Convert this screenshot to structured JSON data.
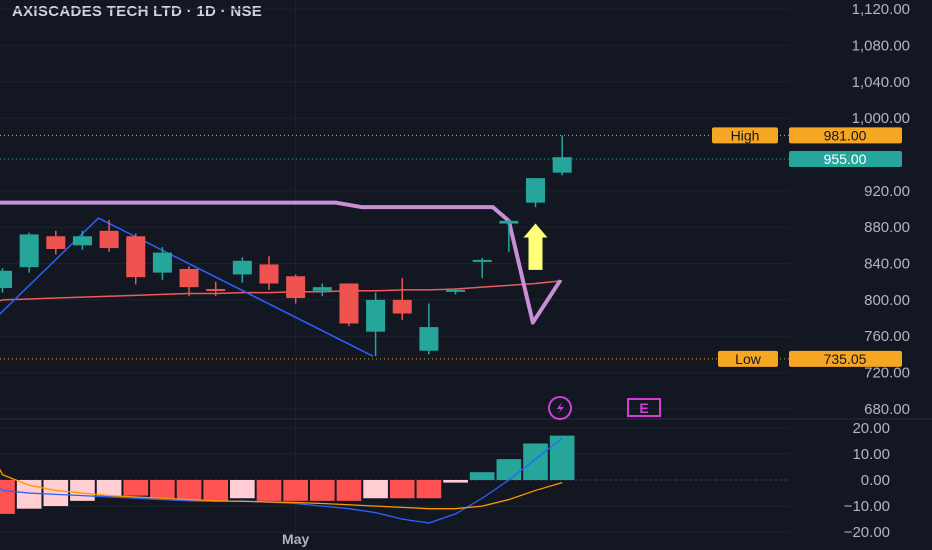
{
  "header": {
    "title": "AXISCADES TECH LTD · 1D · NSE"
  },
  "colors": {
    "background": "#131722",
    "up": "#26a69a",
    "down": "#ef5350",
    "grid": "#1e222d",
    "ma_red": "#f05a5a",
    "trend_blue": "#2962ff",
    "level_purple": "#c78fd6",
    "arrow_yellow": "#ffff7a",
    "tag_orange": "#f5a623",
    "tag_green": "#26a69a",
    "hist_up_strong": "#26a69a",
    "hist_up_weak": "#b2dfdb",
    "hist_down_strong": "#ff5252",
    "hist_down_weak": "#ffcdd2",
    "macd_line": "#2962ff",
    "signal_line": "#ff9800"
  },
  "chart_data": [
    {
      "type": "candlestick",
      "title": "AXISCADES TECH LTD · 1D · NSE",
      "ylim": [
        670,
        1130
      ],
      "yticks": [
        "1,120.00",
        "1,080.00",
        "1,040.00",
        "1,000.00",
        "920.00",
        "880.00",
        "840.00",
        "800.00",
        "760.00",
        "720.00",
        "680.00"
      ],
      "ytick_values": [
        1120,
        1080,
        1040,
        1000,
        920,
        880,
        840,
        800,
        760,
        720,
        680
      ],
      "x_label": "May",
      "x_label_index": 11,
      "candles": [
        {
          "o": 813,
          "h": 835,
          "l": 808,
          "c": 832
        },
        {
          "o": 836,
          "h": 874,
          "l": 830,
          "c": 872
        },
        {
          "o": 870,
          "h": 876,
          "l": 850,
          "c": 856
        },
        {
          "o": 860,
          "h": 876,
          "l": 855,
          "c": 870
        },
        {
          "o": 876,
          "h": 888,
          "l": 853,
          "c": 857
        },
        {
          "o": 870,
          "h": 873,
          "l": 817,
          "c": 825
        },
        {
          "o": 830,
          "h": 858,
          "l": 822,
          "c": 852
        },
        {
          "o": 834,
          "h": 837,
          "l": 804,
          "c": 814
        },
        {
          "o": 812,
          "h": 820,
          "l": 804,
          "c": 810
        },
        {
          "o": 828,
          "h": 847,
          "l": 819,
          "c": 843
        },
        {
          "o": 839,
          "h": 848,
          "l": 811,
          "c": 818
        },
        {
          "o": 826,
          "h": 828,
          "l": 796,
          "c": 802
        },
        {
          "o": 810,
          "h": 818,
          "l": 804,
          "c": 814
        },
        {
          "o": 818,
          "h": 818,
          "l": 771,
          "c": 774
        },
        {
          "o": 765,
          "h": 808,
          "l": 738,
          "c": 800
        },
        {
          "o": 800,
          "h": 824,
          "l": 778,
          "c": 785
        },
        {
          "o": 744,
          "h": 796,
          "l": 740,
          "c": 770
        },
        {
          "o": 810,
          "h": 813,
          "l": 806,
          "c": 811
        },
        {
          "o": 844,
          "h": 846,
          "l": 824,
          "c": 844
        },
        {
          "o": 884,
          "h": 889,
          "l": 853,
          "c": 887
        },
        {
          "o": 907,
          "h": 934,
          "l": 902,
          "c": 934
        },
        {
          "o": 940,
          "h": 981,
          "l": 937,
          "c": 957
        }
      ],
      "ma_line": [
        800,
        801,
        802,
        803,
        804,
        805,
        806,
        807,
        807,
        808,
        808,
        809,
        809,
        810,
        810,
        811,
        811,
        812,
        814,
        816,
        818,
        821
      ],
      "trendline_points": [
        [
          -0.5,
          773
        ],
        [
          3.6,
          890
        ],
        [
          13.9,
          738
        ]
      ],
      "level_line": [
        [
          -0.5,
          907
        ],
        [
          12.5,
          907
        ],
        [
          13.5,
          902
        ],
        [
          18.4,
          902
        ],
        [
          19,
          887
        ],
        [
          19.9,
          775
        ],
        [
          20.9,
          820
        ]
      ],
      "yellow_arrow": {
        "index": 20,
        "from": 833,
        "to": 884
      },
      "high_label": {
        "label": "High",
        "value": "981.00",
        "price": 981
      },
      "current_label": {
        "value": "955.00",
        "price": 955
      },
      "low_label": {
        "label": "Low",
        "value": "735.05",
        "price": 735.05
      },
      "event_icons": {
        "lightning": "lightning-icon",
        "earnings": "E"
      }
    },
    {
      "type": "histogram",
      "title": "",
      "ylim": [
        -23,
        23
      ],
      "yticks": [
        "20.00",
        "10.00",
        "0.00",
        "−10.00",
        "−20.00"
      ],
      "ytick_values": [
        20,
        10,
        0,
        -10,
        -20
      ],
      "histogram": [
        -13,
        -11,
        -10,
        -8,
        -6,
        -6,
        -7,
        -8,
        -8,
        -7,
        -8,
        -8,
        -8,
        -8,
        -7,
        -7,
        -7,
        -1,
        3,
        8,
        14,
        17
      ],
      "macd": [
        -4,
        -5,
        -5.5,
        -6,
        -6.5,
        -7,
        -7.5,
        -8,
        -8.2,
        -8,
        -8.5,
        -9,
        -10,
        -11,
        -12.5,
        -15,
        -16.5,
        -13,
        -7,
        0,
        8,
        16
      ],
      "signal": [
        2,
        -2,
        -4,
        -5,
        -6,
        -6.5,
        -7,
        -7.5,
        -8,
        -8.2,
        -8.4,
        -8.6,
        -9,
        -9.5,
        -10,
        -10.5,
        -11,
        -11,
        -10,
        -7.5,
        -4,
        -1
      ]
    }
  ]
}
